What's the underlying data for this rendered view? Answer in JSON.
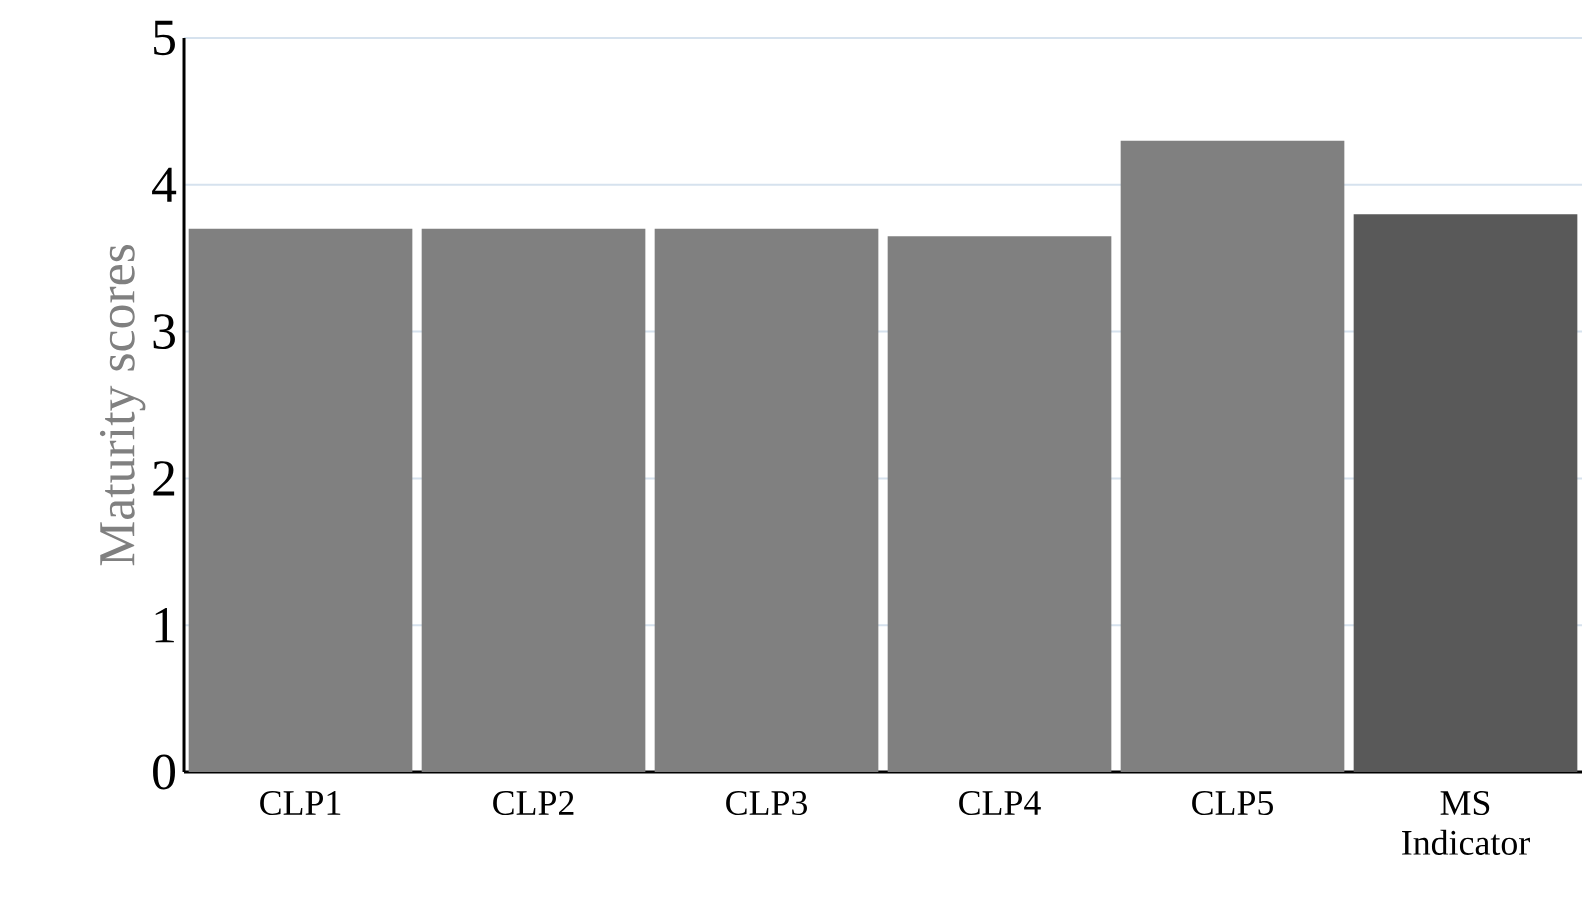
{
  "chart_data": {
    "type": "bar",
    "ylabel": "Maturity scores",
    "categories": [
      "CLP1",
      "CLP2",
      "CLP3",
      "CLP4",
      "CLP5",
      "MS Indicator"
    ],
    "values": [
      3.7,
      3.7,
      3.7,
      3.65,
      4.3,
      3.8
    ],
    "colors": [
      "#808080",
      "#808080",
      "#808080",
      "#808080",
      "#808080",
      "#595959"
    ],
    "ylim": [
      0,
      5
    ],
    "yticks": [
      0,
      1,
      2,
      3,
      4,
      5
    ],
    "grid": "y"
  }
}
